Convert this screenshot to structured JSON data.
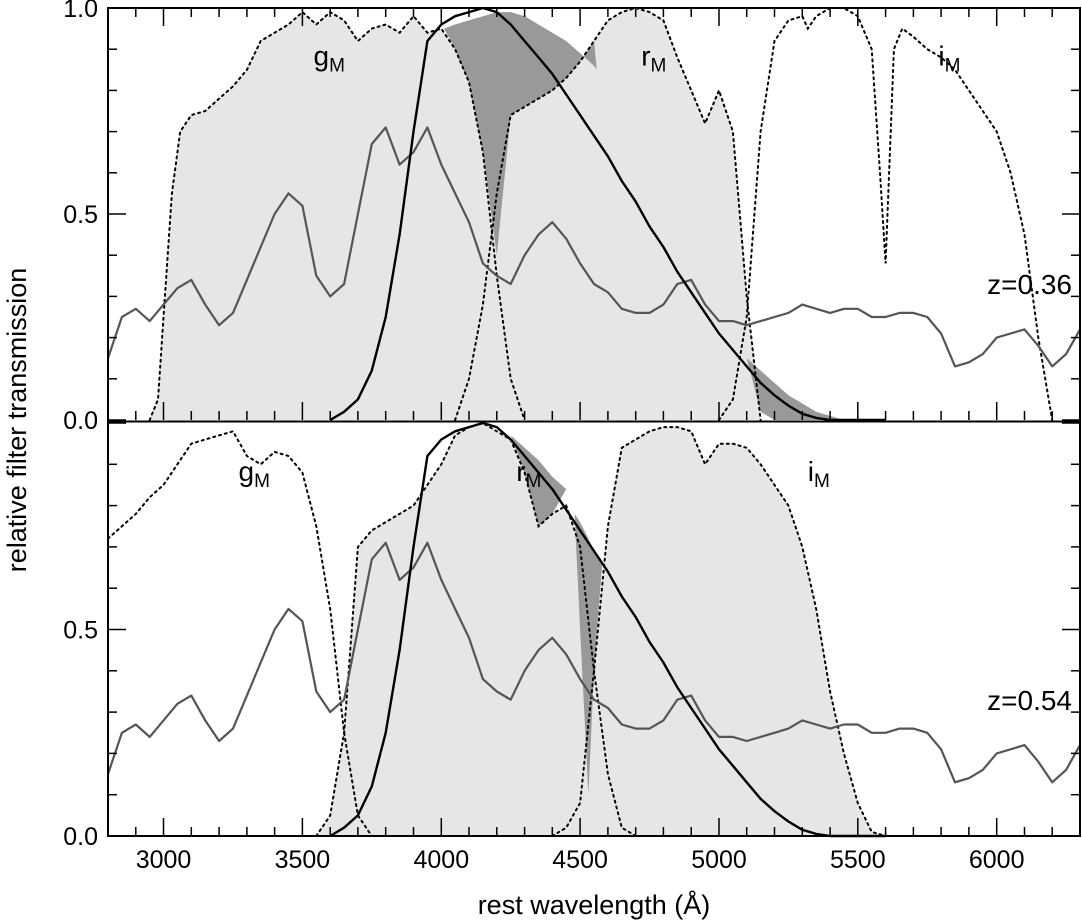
{
  "chart_data": {
    "type": "line",
    "ylabel": "relative filter transmission",
    "xlabel": "rest wavelength (Å)",
    "xlim": [
      2800,
      6300
    ],
    "x_ticks": [
      "3000",
      "3500",
      "4000",
      "4500",
      "5000",
      "5500",
      "6000"
    ],
    "y_ticks": [
      "0.0",
      "0.5",
      "1.0"
    ],
    "y_ticks_bottom": [
      "0.0",
      "0.5"
    ],
    "ylim": [
      0,
      1
    ],
    "colors": {
      "filter_fill": "#e6e6e6",
      "overlap_fill": "#999999",
      "spectrum": "#555555",
      "line": "#000000"
    },
    "panels": [
      {
        "redshift_label": "z=0.36",
        "filter_labels": [
          {
            "name": "g",
            "sub": "M",
            "x": 3540,
            "y": 0.86
          },
          {
            "name": "r",
            "sub": "M",
            "x": 4720,
            "y": 0.86
          },
          {
            "name": "i",
            "sub": "M",
            "x": 5790,
            "y": 0.86
          }
        ],
        "filters": [
          {
            "name": "gM",
            "shaded": true,
            "x": [
              2950,
              2980,
              3000,
              3030,
              3060,
              3100,
              3150,
              3200,
              3250,
              3300,
              3350,
              3400,
              3450,
              3500,
              3550,
              3600,
              3650,
              3700,
              3750,
              3800,
              3850,
              3900,
              3950,
              4000,
              4050,
              4100,
              4150,
              4200,
              4250,
              4300
            ],
            "y": [
              0.0,
              0.05,
              0.25,
              0.55,
              0.7,
              0.74,
              0.75,
              0.78,
              0.81,
              0.85,
              0.92,
              0.94,
              0.96,
              0.99,
              0.96,
              0.99,
              0.97,
              0.92,
              0.95,
              0.96,
              0.94,
              0.98,
              0.94,
              0.95,
              0.9,
              0.82,
              0.65,
              0.35,
              0.1,
              0.0
            ]
          },
          {
            "name": "rM",
            "shaded": true,
            "x": [
              4050,
              4100,
              4150,
              4200,
              4250,
              4300,
              4350,
              4400,
              4450,
              4500,
              4550,
              4600,
              4650,
              4700,
              4750,
              4800,
              4850,
              4900,
              4950,
              5000,
              5050,
              5100,
              5150
            ],
            "y": [
              0.0,
              0.1,
              0.28,
              0.55,
              0.74,
              0.76,
              0.78,
              0.8,
              0.83,
              0.87,
              0.92,
              0.97,
              0.99,
              1.0,
              0.99,
              0.97,
              0.88,
              0.8,
              0.72,
              0.8,
              0.7,
              0.3,
              0.0
            ]
          },
          {
            "name": "iM",
            "shaded": false,
            "x": [
              5000,
              5050,
              5100,
              5150,
              5200,
              5250,
              5300,
              5320,
              5350,
              5400,
              5450,
              5500,
              5550,
              5580,
              5600,
              5630,
              5660,
              5700,
              5750,
              5800,
              5850,
              5900,
              5950,
              6000,
              6050,
              6100,
              6150,
              6200
            ],
            "y": [
              0.0,
              0.05,
              0.25,
              0.7,
              0.92,
              0.97,
              0.98,
              0.95,
              0.98,
              1.0,
              1.0,
              0.98,
              0.9,
              0.6,
              0.38,
              0.9,
              0.95,
              0.93,
              0.9,
              0.88,
              0.85,
              0.8,
              0.75,
              0.7,
              0.6,
              0.45,
              0.2,
              0.0
            ]
          }
        ],
        "vband": {
          "x": [
            3600,
            3650,
            3700,
            3750,
            3800,
            3850,
            3900,
            3950,
            4000,
            4050,
            4100,
            4150,
            4200,
            4250,
            4300,
            4350,
            4400,
            4450,
            4500,
            4550,
            4600,
            4650,
            4700,
            4750,
            4800,
            4850,
            4900,
            4950,
            5000,
            5050,
            5100,
            5150,
            5200,
            5250,
            5300,
            5350,
            5400,
            5450,
            5500,
            5550,
            5600
          ],
          "y": [
            0.0,
            0.02,
            0.05,
            0.12,
            0.25,
            0.45,
            0.7,
            0.92,
            0.96,
            0.98,
            0.99,
            1.0,
            0.99,
            0.96,
            0.92,
            0.88,
            0.84,
            0.79,
            0.74,
            0.69,
            0.64,
            0.58,
            0.53,
            0.47,
            0.42,
            0.36,
            0.31,
            0.26,
            0.21,
            0.17,
            0.13,
            0.09,
            0.06,
            0.035,
            0.015,
            0.005,
            0.0,
            0.0,
            0.0,
            0.0,
            0.0
          ]
        },
        "spectrum": {
          "x": [
            2800,
            2850,
            2900,
            2950,
            3000,
            3050,
            3100,
            3150,
            3200,
            3250,
            3300,
            3350,
            3400,
            3450,
            3500,
            3550,
            3600,
            3650,
            3700,
            3750,
            3800,
            3850,
            3900,
            3950,
            4000,
            4050,
            4100,
            4150,
            4200,
            4250,
            4300,
            4350,
            4400,
            4450,
            4500,
            4550,
            4600,
            4650,
            4700,
            4750,
            4800,
            4850,
            4900,
            4950,
            5000,
            5050,
            5100,
            5150,
            5200,
            5250,
            5300,
            5350,
            5400,
            5450,
            5500,
            5550,
            5600,
            5650,
            5700,
            5750,
            5800,
            5850,
            5900,
            5950,
            6000,
            6050,
            6100,
            6150,
            6200,
            6250,
            6300
          ],
          "y": [
            0.15,
            0.25,
            0.27,
            0.24,
            0.28,
            0.32,
            0.34,
            0.28,
            0.23,
            0.26,
            0.34,
            0.42,
            0.5,
            0.55,
            0.52,
            0.35,
            0.3,
            0.33,
            0.5,
            0.67,
            0.71,
            0.62,
            0.65,
            0.71,
            0.62,
            0.55,
            0.48,
            0.38,
            0.35,
            0.33,
            0.4,
            0.45,
            0.48,
            0.44,
            0.38,
            0.33,
            0.31,
            0.27,
            0.26,
            0.26,
            0.28,
            0.33,
            0.34,
            0.28,
            0.24,
            0.24,
            0.23,
            0.24,
            0.25,
            0.26,
            0.28,
            0.27,
            0.26,
            0.27,
            0.27,
            0.25,
            0.25,
            0.26,
            0.26,
            0.25,
            0.21,
            0.13,
            0.14,
            0.16,
            0.2,
            0.21,
            0.22,
            0.18,
            0.13,
            0.16,
            0.22
          ]
        },
        "overlaps": [
          {
            "x": [
              4010,
              4050,
              4100,
              4150,
              4200,
              4250,
              4300,
              4350,
              4400,
              4450,
              4500,
              4550,
              4560
            ],
            "y_top": [
              0.95,
              0.96,
              0.97,
              0.98,
              0.99,
              0.99,
              0.98,
              0.96,
              0.94,
              0.92,
              0.89,
              0.86,
              0.85
            ],
            "y_bottom": [
              0.95,
              0.9,
              0.82,
              0.65,
              0.4,
              0.74,
              0.76,
              0.78,
              0.8,
              0.83,
              0.87,
              0.92,
              0.85
            ]
          },
          {
            "x": [
              5100,
              5150,
              5200,
              5250,
              5300,
              5350,
              5400,
              5450,
              5500
            ],
            "y_top": [
              0.15,
              0.12,
              0.09,
              0.06,
              0.04,
              0.02,
              0.01,
              0.0,
              0.0
            ],
            "y_bottom": [
              0.15,
              0.02,
              0.0,
              0.0,
              0.0,
              0.0,
              0.0,
              0.0,
              0.0
            ]
          }
        ]
      },
      {
        "redshift_label": "z=0.54",
        "filter_labels": [
          {
            "name": "g",
            "sub": "M",
            "x": 3270,
            "y": 0.86
          },
          {
            "name": "r",
            "sub": "M",
            "x": 4270,
            "y": 0.86
          },
          {
            "name": "i",
            "sub": "M",
            "x": 5320,
            "y": 0.86
          }
        ],
        "filters": [
          {
            "name": "gM",
            "shaded": false,
            "x": [
              2800,
              2850,
              2900,
              2950,
              3000,
              3050,
              3100,
              3150,
              3200,
              3250,
              3300,
              3350,
              3400,
              3450,
              3500,
              3550,
              3600,
              3650,
              3700,
              3750
            ],
            "y": [
              0.72,
              0.75,
              0.78,
              0.82,
              0.85,
              0.9,
              0.95,
              0.96,
              0.97,
              0.98,
              0.92,
              0.9,
              0.93,
              0.92,
              0.88,
              0.75,
              0.55,
              0.25,
              0.05,
              0.0
            ]
          },
          {
            "name": "rM",
            "shaded": true,
            "x": [
              3550,
              3600,
              3650,
              3700,
              3750,
              3800,
              3850,
              3900,
              3950,
              4000,
              4050,
              4100,
              4150,
              4200,
              4250,
              4300,
              4350,
              4400,
              4450,
              4500,
              4550,
              4600,
              4650,
              4700,
              4750
            ],
            "y": [
              0.0,
              0.05,
              0.25,
              0.7,
              0.74,
              0.76,
              0.78,
              0.8,
              0.85,
              0.9,
              0.97,
              0.99,
              1.0,
              0.98,
              0.96,
              0.88,
              0.75,
              0.78,
              0.8,
              0.7,
              0.4,
              0.15,
              0.02,
              0.0,
              0.0
            ]
          },
          {
            "name": "iM",
            "shaded": true,
            "x": [
              4400,
              4450,
              4500,
              4550,
              4600,
              4650,
              4700,
              4750,
              4800,
              4850,
              4900,
              4950,
              5000,
              5050,
              5100,
              5150,
              5200,
              5250,
              5300,
              5350,
              5400,
              5450,
              5500,
              5550,
              5600
            ],
            "y": [
              0.0,
              0.02,
              0.08,
              0.4,
              0.75,
              0.94,
              0.96,
              0.98,
              0.99,
              0.99,
              0.98,
              0.9,
              0.95,
              0.95,
              0.94,
              0.9,
              0.85,
              0.8,
              0.7,
              0.55,
              0.35,
              0.2,
              0.08,
              0.01,
              0.0
            ]
          }
        ],
        "vband": {
          "x": [
            3600,
            3650,
            3700,
            3750,
            3800,
            3850,
            3900,
            3950,
            4000,
            4050,
            4100,
            4150,
            4200,
            4250,
            4300,
            4350,
            4400,
            4450,
            4500,
            4550,
            4600,
            4650,
            4700,
            4750,
            4800,
            4850,
            4900,
            4950,
            5000,
            5050,
            5100,
            5150,
            5200,
            5250,
            5300,
            5350,
            5400,
            5450,
            5500,
            5550,
            5600
          ],
          "y": [
            0.0,
            0.02,
            0.05,
            0.12,
            0.25,
            0.45,
            0.7,
            0.92,
            0.96,
            0.98,
            0.99,
            1.0,
            0.99,
            0.96,
            0.92,
            0.88,
            0.84,
            0.79,
            0.74,
            0.69,
            0.64,
            0.58,
            0.53,
            0.47,
            0.42,
            0.36,
            0.31,
            0.26,
            0.21,
            0.17,
            0.13,
            0.09,
            0.06,
            0.035,
            0.015,
            0.005,
            0.0,
            0.0,
            0.0,
            0.0,
            0.0
          ]
        },
        "spectrum": {
          "x": [
            2800,
            2850,
            2900,
            2950,
            3000,
            3050,
            3100,
            3150,
            3200,
            3250,
            3300,
            3350,
            3400,
            3450,
            3500,
            3550,
            3600,
            3650,
            3700,
            3750,
            3800,
            3850,
            3900,
            3950,
            4000,
            4050,
            4100,
            4150,
            4200,
            4250,
            4300,
            4350,
            4400,
            4450,
            4500,
            4550,
            4600,
            4650,
            4700,
            4750,
            4800,
            4850,
            4900,
            4950,
            5000,
            5050,
            5100,
            5150,
            5200,
            5250,
            5300,
            5350,
            5400,
            5450,
            5500,
            5550,
            5600,
            5650,
            5700,
            5750,
            5800,
            5850,
            5900,
            5950,
            6000,
            6050,
            6100,
            6150,
            6200,
            6250,
            6300
          ],
          "y": [
            0.15,
            0.25,
            0.27,
            0.24,
            0.28,
            0.32,
            0.34,
            0.28,
            0.23,
            0.26,
            0.34,
            0.42,
            0.5,
            0.55,
            0.52,
            0.35,
            0.3,
            0.33,
            0.5,
            0.67,
            0.71,
            0.62,
            0.65,
            0.71,
            0.62,
            0.55,
            0.48,
            0.38,
            0.35,
            0.33,
            0.4,
            0.45,
            0.48,
            0.44,
            0.38,
            0.33,
            0.31,
            0.27,
            0.26,
            0.26,
            0.28,
            0.33,
            0.34,
            0.28,
            0.24,
            0.24,
            0.23,
            0.24,
            0.25,
            0.26,
            0.28,
            0.27,
            0.26,
            0.27,
            0.27,
            0.25,
            0.25,
            0.26,
            0.26,
            0.25,
            0.21,
            0.13,
            0.14,
            0.16,
            0.2,
            0.21,
            0.22,
            0.18,
            0.13,
            0.16,
            0.22
          ]
        },
        "overlaps": [
          {
            "x": [
              4250,
              4300,
              4350,
              4400,
              4450
            ],
            "y_top": [
              0.97,
              0.94,
              0.91,
              0.87,
              0.84
            ],
            "y_bottom": [
              0.97,
              0.88,
              0.75,
              0.78,
              0.84
            ]
          },
          {
            "x": [
              4480,
              4500,
              4530,
              4550,
              4580,
              4600
            ],
            "y_top": [
              0.78,
              0.76,
              0.72,
              0.69,
              0.66,
              0.64
            ],
            "y_bottom": [
              0.78,
              0.5,
              0.1,
              0.4,
              0.66,
              0.64
            ]
          }
        ]
      }
    ]
  }
}
